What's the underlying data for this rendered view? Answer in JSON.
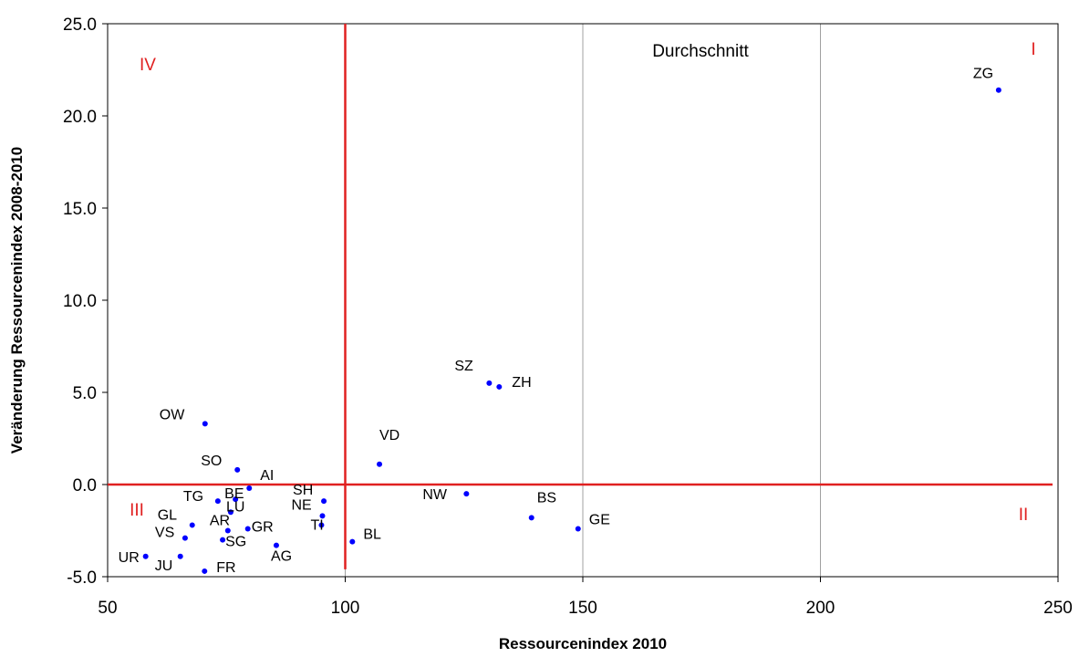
{
  "chart_data": {
    "type": "scatter",
    "xlabel": "Ressourcenindex 2010",
    "ylabel": "Veränderung Ressourcenindex 2008-2010",
    "xlim": [
      50,
      250
    ],
    "ylim": [
      -5,
      25
    ],
    "x_ticks": [
      "50",
      "100",
      "150",
      "200",
      "250"
    ],
    "y_ticks": [
      "-5.0",
      "0.0",
      "5.0",
      "10.0",
      "15.0",
      "20.0",
      "25.0"
    ],
    "grid": "vertical",
    "point_color": "#0000ff",
    "reference_line_color": "#e02020",
    "reference_lines": {
      "x": 100,
      "y": 0
    },
    "annotation": "Durchschnitt",
    "quadrants": [
      {
        "label": "I",
        "position": "top-right"
      },
      {
        "label": "II",
        "position": "bottom-right"
      },
      {
        "label": "III",
        "position": "bottom-left"
      },
      {
        "label": "IV",
        "position": "top-left"
      }
    ],
    "points": [
      {
        "label": "ZG",
        "x": 237.5,
        "y": 21.4
      },
      {
        "label": "SZ",
        "x": 130.3,
        "y": 5.5
      },
      {
        "label": "ZH",
        "x": 132.4,
        "y": 5.3
      },
      {
        "label": "VD",
        "x": 107.2,
        "y": 1.1
      },
      {
        "label": "OW",
        "x": 70.5,
        "y": 3.3
      },
      {
        "label": "SO",
        "x": 77.3,
        "y": 0.8
      },
      {
        "label": "AI",
        "x": 79.8,
        "y": -0.2
      },
      {
        "label": "NW",
        "x": 125.5,
        "y": -0.5
      },
      {
        "label": "BS",
        "x": 139.2,
        "y": -1.8
      },
      {
        "label": "GE",
        "x": 149.0,
        "y": -2.4
      },
      {
        "label": "BL",
        "x": 101.5,
        "y": -3.1
      },
      {
        "label": "SH",
        "x": 95.5,
        "y": -0.9
      },
      {
        "label": "NE",
        "x": 95.2,
        "y": -1.7
      },
      {
        "label": "TI",
        "x": 95.0,
        "y": -2.2
      },
      {
        "label": "TG",
        "x": 73.2,
        "y": -0.9
      },
      {
        "label": "BE",
        "x": 76.9,
        "y": -0.8
      },
      {
        "label": "LU",
        "x": 75.9,
        "y": -1.5
      },
      {
        "label": "GL",
        "x": 67.8,
        "y": -2.2
      },
      {
        "label": "AR",
        "x": 75.3,
        "y": -2.5
      },
      {
        "label": "GR",
        "x": 79.5,
        "y": -2.4
      },
      {
        "label": "VS",
        "x": 66.3,
        "y": -2.9
      },
      {
        "label": "SG",
        "x": 74.2,
        "y": -3.0
      },
      {
        "label": "AG",
        "x": 85.5,
        "y": -3.3
      },
      {
        "label": "UR",
        "x": 58.0,
        "y": -3.9
      },
      {
        "label": "JU",
        "x": 65.3,
        "y": -3.9
      },
      {
        "label": "FR",
        "x": 70.4,
        "y": -4.7
      }
    ]
  }
}
